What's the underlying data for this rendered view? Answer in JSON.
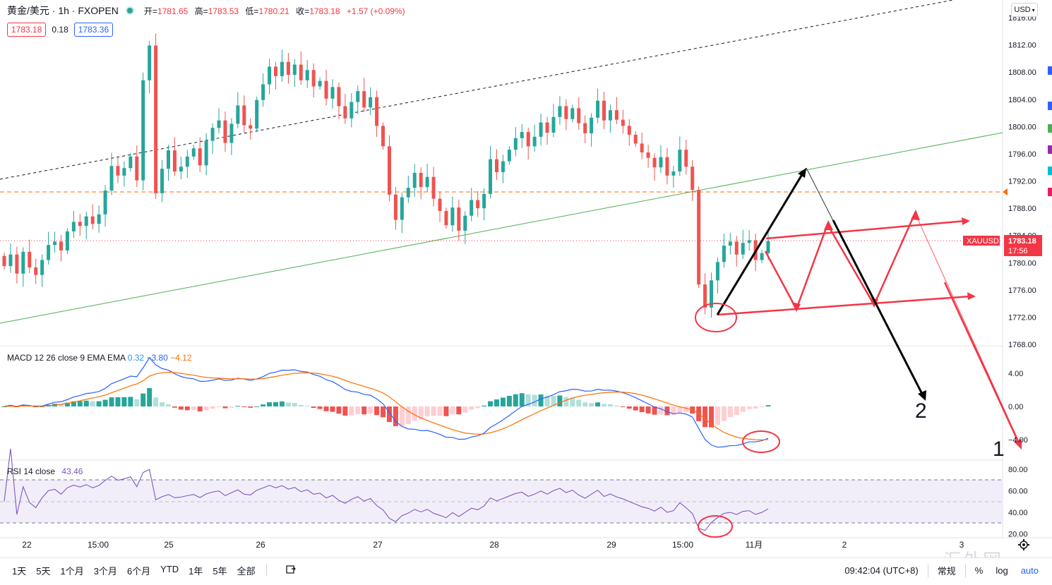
{
  "header": {
    "symbol": "黄金/美元 · 1h · FXOPEN",
    "ohlc": [
      {
        "label": "开=",
        "value": "1781.65"
      },
      {
        "label": "高=",
        "value": "1783.53"
      },
      {
        "label": "低=",
        "value": "1780.21"
      },
      {
        "label": "收=",
        "value": "1783.18"
      }
    ],
    "change": "+1.57 (+0.09%)",
    "sell_price": "1783.18",
    "spread": "0.18",
    "buy_price": "1783.36",
    "currency": "USD"
  },
  "chart_data": [
    {
      "type": "candlestick",
      "symbol": "XAUUSD",
      "price_axis": {
        "min": 1768,
        "max": 1816,
        "ticks": [
          "1816.00",
          "1812.00",
          "1808.00",
          "1804.00",
          "1800.00",
          "1796.00",
          "1792.00",
          "1788.00",
          "1784.00",
          "1780.00",
          "1776.00",
          "1772.00",
          "1768.00"
        ]
      },
      "time_labels": [
        "22",
        "15:00",
        "25",
        "26",
        "27",
        "28",
        "29",
        "15:00",
        "11月",
        "2",
        "3"
      ],
      "last_price": "1783.18",
      "countdown": "17:56",
      "price_label": "XAUUSD",
      "close": [
        1779.5,
        1781.2,
        1778.4,
        1781.6,
        1779.3,
        1778.2,
        1780.4,
        1782.6,
        1783.1,
        1781.8,
        1784.6,
        1786.0,
        1785.4,
        1786.8,
        1785.7,
        1787.1,
        1790.6,
        1794.2,
        1792.8,
        1793.9,
        1795.6,
        1792.1,
        1806.8,
        1811.9,
        1790.2,
        1793.8,
        1796.5,
        1793.4,
        1794.1,
        1795.6,
        1796.8,
        1794.3,
        1797.9,
        1799.8,
        1800.9,
        1797.6,
        1800.4,
        1803.1,
        1800.2,
        1799.7,
        1803.9,
        1806.2,
        1808.8,
        1807.4,
        1809.5,
        1807.6,
        1809.1,
        1806.8,
        1808.3,
        1805.9,
        1806.7,
        1804.1,
        1805.8,
        1803.0,
        1801.2,
        1803.6,
        1805.2,
        1802.8,
        1804.3,
        1800.1,
        1797.1,
        1790.0,
        1786.3,
        1789.6,
        1791.0,
        1793.2,
        1791.1,
        1792.6,
        1789.4,
        1787.6,
        1785.5,
        1788.1,
        1784.7,
        1786.9,
        1789.2,
        1788.0,
        1790.1,
        1795.2,
        1793.3,
        1794.9,
        1796.6,
        1798.3,
        1799.2,
        1797.1,
        1798.5,
        1800.6,
        1799.1,
        1801.4,
        1803.0,
        1801.1,
        1802.7,
        1800.5,
        1799.0,
        1801.3,
        1803.8,
        1800.9,
        1802.4,
        1801.0,
        1800.1,
        1798.8,
        1797.5,
        1796.2,
        1795.4,
        1794.0,
        1795.5,
        1792.8,
        1793.4,
        1796.6,
        1794.1,
        1790.7,
        1776.8,
        1773.4,
        1777.4,
        1780.1,
        1782.5,
        1783.1,
        1781.2,
        1782.9,
        1783.3,
        1780.4,
        1781.4,
        1783.18
      ]
    },
    {
      "type": "line",
      "name": "MACD 12 26 close 9 EMA EMA",
      "values_shown": [
        "0.32",
        "−3.80",
        "−4.12"
      ],
      "y_ticks": [
        "4.00",
        "0.00",
        "−4.00"
      ]
    },
    {
      "type": "line",
      "name": "RSI 14 close",
      "values_shown": [
        "43.46"
      ],
      "y_ticks": [
        "80.00",
        "60.00",
        "40.00",
        "20.00"
      ]
    }
  ],
  "annotations": {
    "label_1": "1",
    "label_2": "2"
  },
  "bottom": {
    "ranges": [
      "1天",
      "5天",
      "1个月",
      "3个月",
      "6个月",
      "YTD",
      "1年",
      "5年",
      "全部"
    ],
    "time": "09:42:04 (UTC+8)",
    "session": "常规",
    "percent": "%",
    "log": "log",
    "auto": "auto"
  },
  "watermark": "汇外网"
}
